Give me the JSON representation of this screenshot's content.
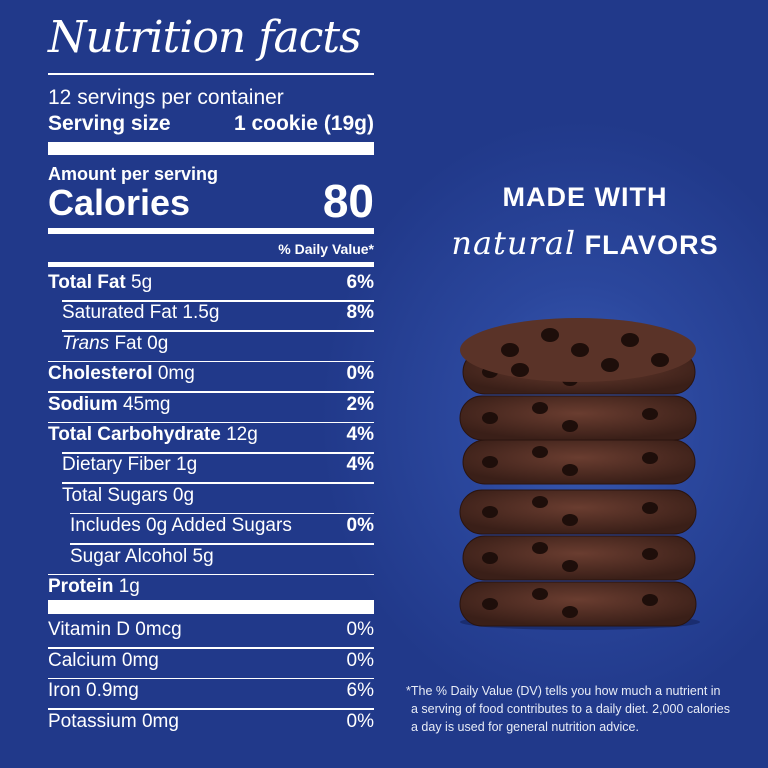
{
  "label": {
    "title": "Nutrition facts",
    "servings": "12 servings per container",
    "serving_size_label": "Serving size",
    "serving_size_value": "1 cookie (19g)",
    "amount_per_serving": "Amount per serving",
    "calories_label": "Calories",
    "calories_value": "80",
    "dv_header": "% Daily Value*",
    "rows": [
      {
        "name": "Total Fat",
        "amount": "5g",
        "dv": "6%"
      },
      {
        "name": "Saturated Fat",
        "amount": "1.5g",
        "dv": "8%"
      },
      {
        "name": "Trans",
        "amount": "Fat 0g",
        "dv": ""
      },
      {
        "name": "Cholesterol",
        "amount": "0mg",
        "dv": "0%"
      },
      {
        "name": "Sodium",
        "amount": "45mg",
        "dv": "2%"
      },
      {
        "name": "Total Carbohydrate",
        "amount": "12g",
        "dv": "4%"
      },
      {
        "name": "Dietary Fiber",
        "amount": "1g",
        "dv": "4%"
      },
      {
        "name": "Total Sugars",
        "amount": "0g",
        "dv": ""
      },
      {
        "name": "Includes 0g Added Sugars",
        "amount": "",
        "dv": "0%"
      },
      {
        "name": "Sugar Alcohol",
        "amount": "5g",
        "dv": ""
      },
      {
        "name": "Protein",
        "amount": "1g",
        "dv": ""
      }
    ],
    "vitamins": [
      {
        "name": "Vitamin D 0mcg",
        "dv": "0%"
      },
      {
        "name": "Calcium 0mg",
        "dv": "0%"
      },
      {
        "name": "Iron 0.9mg",
        "dv": "6%"
      },
      {
        "name": "Potassium 0mg",
        "dv": "0%"
      }
    ]
  },
  "promo": {
    "line1": "MADE WITH",
    "natural": "natural",
    "flavors": "FLAVORS"
  },
  "footnote": [
    "*The % Daily Value (DV) tells you how much a nutrient in",
    "a serving of food contributes to a daily diet. 2,000 calories",
    "a day is used for general nutrition advice."
  ],
  "colors": {
    "background": "#21398a",
    "text": "#ffffff",
    "cookie": "#4a2a22"
  }
}
